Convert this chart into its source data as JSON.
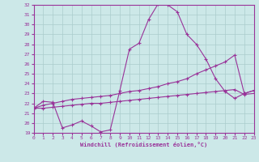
{
  "xlabel": "Windchill (Refroidissement éolien,°C)",
  "bg_color": "#cce8e8",
  "line_color": "#993399",
  "grid_color": "#aacccc",
  "xlim": [
    0,
    23
  ],
  "ylim": [
    19,
    32
  ],
  "xticks": [
    0,
    1,
    2,
    3,
    4,
    5,
    6,
    7,
    8,
    9,
    10,
    11,
    12,
    13,
    14,
    15,
    16,
    17,
    18,
    19,
    20,
    21,
    22,
    23
  ],
  "yticks": [
    19,
    20,
    21,
    22,
    23,
    24,
    25,
    26,
    27,
    28,
    29,
    30,
    31,
    32
  ],
  "curve1_x": [
    0,
    1,
    2,
    3,
    4,
    5,
    6,
    7,
    8,
    9,
    10,
    11,
    12,
    13,
    14,
    15,
    16,
    17,
    18,
    19,
    20,
    21,
    22,
    23
  ],
  "curve1_y": [
    21.5,
    22.2,
    22.1,
    19.5,
    19.8,
    20.2,
    19.7,
    19.1,
    19.3,
    23.3,
    27.5,
    28.1,
    30.5,
    32.1,
    32.0,
    31.3,
    29.0,
    28.0,
    26.5,
    24.5,
    23.2,
    22.5,
    23.0,
    23.3
  ],
  "curve2_x": [
    0,
    1,
    2,
    3,
    4,
    5,
    6,
    7,
    8,
    9,
    10,
    11,
    12,
    13,
    14,
    15,
    16,
    17,
    18,
    19,
    20,
    21,
    22,
    23
  ],
  "curve2_y": [
    21.5,
    21.8,
    22.0,
    22.2,
    22.4,
    22.5,
    22.6,
    22.7,
    22.8,
    23.0,
    23.2,
    23.3,
    23.5,
    23.7,
    24.0,
    24.2,
    24.5,
    25.0,
    25.4,
    25.8,
    26.2,
    26.9,
    23.0,
    23.3
  ],
  "curve3_x": [
    0,
    1,
    2,
    3,
    4,
    5,
    6,
    7,
    8,
    9,
    10,
    11,
    12,
    13,
    14,
    15,
    16,
    17,
    18,
    19,
    20,
    21,
    22,
    23
  ],
  "curve3_y": [
    21.5,
    21.5,
    21.6,
    21.7,
    21.8,
    21.9,
    22.0,
    22.0,
    22.1,
    22.2,
    22.3,
    22.4,
    22.5,
    22.6,
    22.7,
    22.8,
    22.9,
    23.0,
    23.1,
    23.2,
    23.3,
    23.4,
    22.9,
    23.0
  ]
}
